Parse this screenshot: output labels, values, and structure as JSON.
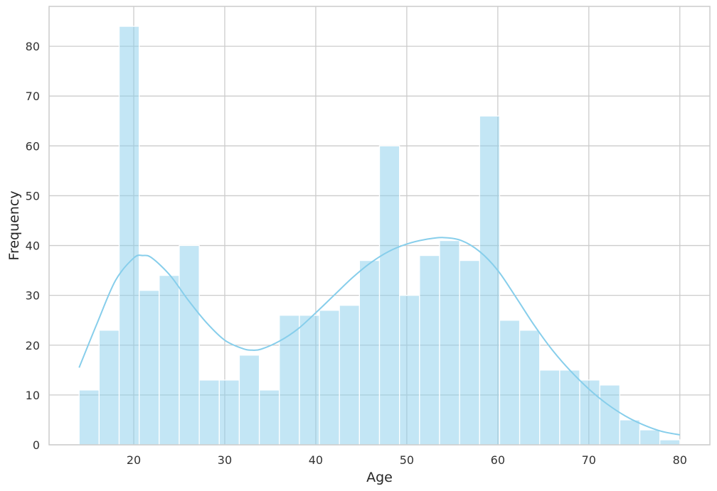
{
  "chart_data": {
    "type": "bar",
    "subtype": "histogram_with_kde",
    "title": "",
    "xlabel": "Age",
    "ylabel": "Frequency",
    "xlim": [
      10.7,
      83.3
    ],
    "ylim": [
      0,
      88
    ],
    "xticks": [
      20,
      30,
      40,
      50,
      60,
      70,
      80
    ],
    "yticks": [
      0,
      10,
      20,
      30,
      40,
      50,
      60,
      70,
      80
    ],
    "grid": true,
    "bin_edges": [
      14,
      16.2,
      18.4,
      20.6,
      22.8,
      25,
      27.2,
      29.4,
      31.6,
      33.8,
      36,
      38.2,
      40.4,
      42.6,
      44.8,
      47,
      49.2,
      51.4,
      53.6,
      55.8,
      58,
      60.2,
      62.4,
      64.6,
      66.8,
      69,
      71.2,
      73.4,
      75.6,
      77.8,
      80
    ],
    "values": [
      11,
      23,
      84,
      31,
      34,
      40,
      13,
      13,
      18,
      11,
      26,
      26,
      27,
      28,
      37,
      60,
      30,
      38,
      41,
      37,
      66,
      25,
      23,
      15,
      15,
      13,
      12,
      5,
      3,
      1
    ],
    "kde": {
      "x": [
        14,
        16,
        18,
        20,
        21,
        22,
        24,
        26,
        28,
        30,
        32,
        33,
        34,
        36,
        38,
        40,
        42,
        44,
        46,
        48,
        50,
        52,
        54,
        56,
        58,
        60,
        62,
        64,
        66,
        68,
        70,
        72,
        74,
        76,
        78,
        80
      ],
      "y": [
        15.5,
        24.5,
        33,
        37.5,
        38,
        37.5,
        34,
        29,
        24.5,
        21,
        19.3,
        19,
        19.2,
        20.8,
        23.2,
        26.5,
        30,
        33.5,
        36.5,
        38.8,
        40.3,
        41.2,
        41.6,
        41,
        38.8,
        35,
        29.6,
        24,
        19,
        14.8,
        11.2,
        8.2,
        5.8,
        4,
        2.7,
        2
      ]
    },
    "colors": {
      "bar_fill": "#87ceeb",
      "bar_opacity": 0.5,
      "bar_edge": "#ffffff",
      "kde_line": "#87ceeb",
      "grid": "#cccccc",
      "axes_edge": "#cccccc"
    }
  }
}
